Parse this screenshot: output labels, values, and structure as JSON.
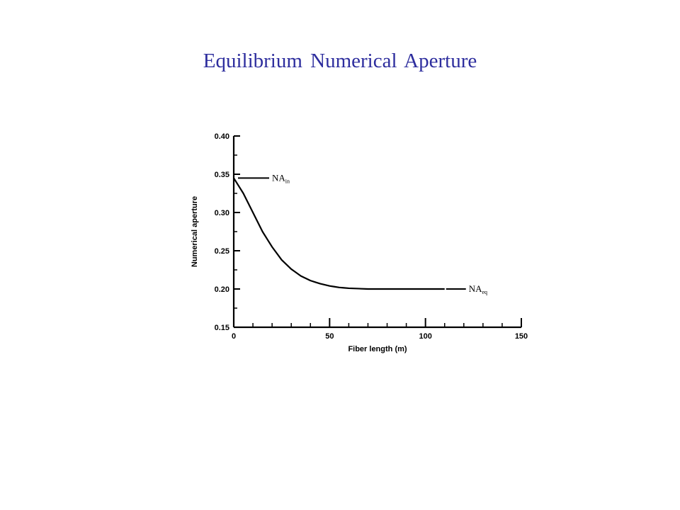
{
  "slide": {
    "title": "Equilibrium Numerical Aperture"
  },
  "chart_data": {
    "type": "line",
    "title": "",
    "xlabel": "Fiber length (m)",
    "ylabel": "Numerical aperture",
    "xlim": [
      0,
      150
    ],
    "ylim": [
      0.15,
      0.4
    ],
    "xticks": [
      0,
      50,
      100,
      150
    ],
    "xtick_labels": [
      "0",
      "50",
      "100",
      "150"
    ],
    "yticks": [
      0.15,
      0.2,
      0.25,
      0.3,
      0.35,
      0.4
    ],
    "ytick_labels": [
      "0.15",
      "0.20",
      "0.25",
      "0.30",
      "0.35",
      "0.40"
    ],
    "grid": false,
    "series": [
      {
        "x": [
          0,
          5,
          10,
          15,
          20,
          25,
          30,
          35,
          40,
          45,
          50,
          55,
          60,
          70,
          80,
          90,
          100,
          110
        ],
        "y": [
          0.345,
          0.325,
          0.3,
          0.275,
          0.255,
          0.238,
          0.226,
          0.217,
          0.211,
          0.207,
          0.204,
          0.202,
          0.201,
          0.2,
          0.2,
          0.2,
          0.2,
          0.2
        ]
      }
    ],
    "annotations": [
      {
        "base": "NA",
        "sub": "in",
        "x": 0,
        "y": 0.345
      },
      {
        "base": "NA",
        "sub": "eq",
        "x": 110,
        "y": 0.2
      }
    ]
  }
}
